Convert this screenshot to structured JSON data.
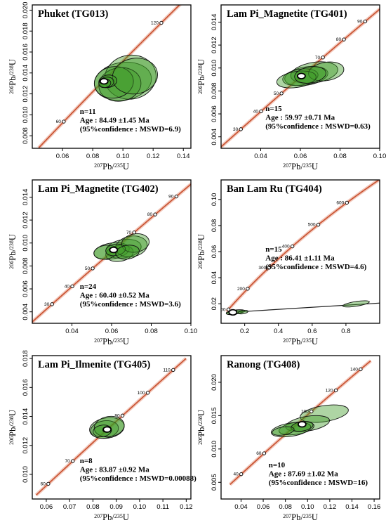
{
  "chart_data": [
    {
      "type": "scatter",
      "title": "Phuket (TG013)",
      "xlabel": "207Pb/235U",
      "ylabel": "206Pb/238U",
      "xlim": [
        0.04,
        0.145
      ],
      "ylim": [
        0.0068,
        0.0205
      ],
      "xticks": [
        0.06,
        0.08,
        0.1,
        0.12,
        0.14
      ],
      "xtick_labels": [
        "0.06",
        "0.08",
        "0.10",
        "0.12",
        "0.14"
      ],
      "yticks": [
        0.008,
        0.01,
        0.012,
        0.014,
        0.016,
        0.018,
        0.02
      ],
      "ytick_labels": [
        "0.008",
        "0.010",
        "0.012",
        "0.014",
        "0.016",
        "0.018",
        "0.020"
      ],
      "concordia_ages": [
        60,
        120
      ],
      "concordia_range": [
        44,
        132
      ],
      "n": "n=11",
      "age": "Age : 84.49 ±1.45 Ma",
      "mswd": "(95%confidence : MSWD=6.9)",
      "ellipses": [
        {
          "x": 0.1,
          "y": 0.0132,
          "rx": 0.019,
          "ry": 0.0018
        },
        {
          "x": 0.105,
          "y": 0.0136,
          "rx": 0.017,
          "ry": 0.0021
        },
        {
          "x": 0.098,
          "y": 0.0129,
          "rx": 0.014,
          "ry": 0.0016
        },
        {
          "x": 0.094,
          "y": 0.0131,
          "rx": 0.013,
          "ry": 0.0015
        },
        {
          "x": 0.108,
          "y": 0.0137,
          "rx": 0.015,
          "ry": 0.0017
        },
        {
          "x": 0.09,
          "y": 0.0132,
          "rx": 0.006,
          "ry": 0.0006
        },
        {
          "x": 0.089,
          "y": 0.0131,
          "rx": 0.005,
          "ry": 0.0005
        },
        {
          "x": 0.088,
          "y": 0.013,
          "rx": 0.004,
          "ry": 0.0004
        }
      ],
      "mean": {
        "x": 0.0875,
        "y": 0.0132
      }
    },
    {
      "type": "scatter",
      "title": "Lam Pi_Magnetite (TG401)",
      "xlabel": "207Pb/235U",
      "ylabel": "206Pb/238U",
      "xlim": [
        0.02,
        0.1
      ],
      "ylim": [
        0.003,
        0.0155
      ],
      "xticks": [
        0.04,
        0.06,
        0.08,
        0.1
      ],
      "xtick_labels": [
        "0.04",
        "0.06",
        "0.08",
        "0.10"
      ],
      "yticks": [
        0.004,
        0.006,
        0.008,
        0.01,
        0.012,
        0.014
      ],
      "ytick_labels": [
        "0.004",
        "0.006",
        "0.008",
        "0.010",
        "0.012",
        "0.014"
      ],
      "concordia_ages": [
        30,
        40,
        50,
        70,
        80,
        90
      ],
      "concordia_range": [
        20,
        100
      ],
      "n": "n=15",
      "age": "Age : 59.97 ±0.71 Ma",
      "mswd": "(95%confidence : MSWD=0.63)",
      "ellipses": [
        {
          "x": 0.063,
          "y": 0.0093,
          "rx": 0.011,
          "ry": 0.0008
        },
        {
          "x": 0.067,
          "y": 0.0096,
          "rx": 0.012,
          "ry": 0.0009
        },
        {
          "x": 0.06,
          "y": 0.0092,
          "rx": 0.009,
          "ry": 0.0007
        },
        {
          "x": 0.073,
          "y": 0.0097,
          "rx": 0.009,
          "ry": 0.0008
        },
        {
          "x": 0.058,
          "y": 0.009,
          "rx": 0.01,
          "ry": 0.0007
        },
        {
          "x": 0.065,
          "y": 0.0094,
          "rx": 0.008,
          "ry": 0.0007
        }
      ],
      "mean": {
        "x": 0.0605,
        "y": 0.0093
      }
    },
    {
      "type": "scatter",
      "title": "Lam Pi_Magnetite (TG402)",
      "xlabel": "207Pb/235U",
      "ylabel": "206Pb/238U",
      "xlim": [
        0.02,
        0.1
      ],
      "ylim": [
        0.003,
        0.0155
      ],
      "xticks": [
        0.04,
        0.06,
        0.08,
        0.1
      ],
      "xtick_labels": [
        "0.04",
        "0.06",
        "0.08",
        "0.10"
      ],
      "yticks": [
        0.004,
        0.006,
        0.008,
        0.01,
        0.012,
        0.014
      ],
      "ytick_labels": [
        "0.004",
        "0.006",
        "0.008",
        "0.010",
        "0.012",
        "0.014"
      ],
      "concordia_ages": [
        30,
        40,
        50,
        70,
        80,
        90
      ],
      "concordia_range": [
        20,
        100
      ],
      "n": "n=24",
      "age": "Age : 60.40 ±0.52 Ma",
      "mswd": "(95%confidence : MSWD=3.6)",
      "ellipses": [
        {
          "x": 0.066,
          "y": 0.0095,
          "rx": 0.009,
          "ry": 0.0008
        },
        {
          "x": 0.06,
          "y": 0.0093,
          "rx": 0.009,
          "ry": 0.0007
        },
        {
          "x": 0.064,
          "y": 0.0091,
          "rx": 0.007,
          "ry": 0.0007
        },
        {
          "x": 0.07,
          "y": 0.0097,
          "rx": 0.008,
          "ry": 0.0009
        },
        {
          "x": 0.057,
          "y": 0.0092,
          "rx": 0.006,
          "ry": 0.0006
        },
        {
          "x": 0.072,
          "y": 0.01,
          "rx": 0.007,
          "ry": 0.0008
        },
        {
          "x": 0.062,
          "y": 0.0094,
          "rx": 0.005,
          "ry": 0.0005
        },
        {
          "x": 0.068,
          "y": 0.0092,
          "rx": 0.006,
          "ry": 0.0006
        }
      ],
      "mean": {
        "x": 0.061,
        "y": 0.0094
      }
    },
    {
      "type": "scatter",
      "title": "Ban Lam Ru (TG404)",
      "xlabel": "207Pb/235U",
      "ylabel": "206Pb/238U",
      "xlim": [
        0.06,
        1.0
      ],
      "ylim": [
        0.005,
        0.115
      ],
      "xticks": [
        0.2,
        0.4,
        0.6,
        0.8
      ],
      "xtick_labels": [
        "0.2",
        "0.4",
        "0.6",
        "0.8"
      ],
      "yticks": [
        0.02,
        0.04,
        0.06,
        0.08,
        0.1
      ],
      "ytick_labels": [
        "0.02",
        "0.04",
        "0.06",
        "0.08",
        "0.10"
      ],
      "concordia_ages": [
        100,
        200,
        300,
        400,
        500,
        600
      ],
      "concordia_range": [
        90,
        705
      ],
      "n": "n=15",
      "age": "Age : 86.41 ±1.11 Ma",
      "mswd": "(95%confidence : MSWD=4.6)",
      "discordia": [
        [
          0.09,
          0.0132
        ],
        [
          1.0,
          0.0205
        ]
      ],
      "ellipses": [
        {
          "x": 0.14,
          "y": 0.0135,
          "rx": 0.05,
          "ry": 0.0016
        },
        {
          "x": 0.16,
          "y": 0.0138,
          "rx": 0.04,
          "ry": 0.0014
        },
        {
          "x": 0.12,
          "y": 0.0132,
          "rx": 0.03,
          "ry": 0.0012
        },
        {
          "x": 0.19,
          "y": 0.0136,
          "rx": 0.03,
          "ry": 0.0013
        },
        {
          "x": 0.86,
          "y": 0.0199,
          "rx": 0.08,
          "ry": 0.0018
        }
      ],
      "mean": {
        "x": 0.13,
        "y": 0.0134
      }
    },
    {
      "type": "scatter",
      "title": "Lam Pi_Ilmenite (TG405)",
      "xlabel": "207Pb/235U",
      "ylabel": "206Pb/238U",
      "xlim": [
        0.054,
        0.122
      ],
      "ylim": [
        0.0083,
        0.0182
      ],
      "xticks": [
        0.06,
        0.07,
        0.08,
        0.09,
        0.1,
        0.11,
        0.12
      ],
      "xtick_labels": [
        "0.06",
        "0.07",
        "0.08",
        "0.09",
        "0.10",
        "0.11",
        "0.12"
      ],
      "yticks": [
        0.01,
        0.012,
        0.014,
        0.016,
        0.018
      ],
      "ytick_labels": [
        "0.010",
        "0.012",
        "0.014",
        "0.016",
        "0.018"
      ],
      "concordia_ages": [
        60,
        70,
        90,
        100,
        110
      ],
      "concordia_range": [
        55,
        115
      ],
      "n": "n=8",
      "age": "Age : 83.87 ±0.92 Ma",
      "mswd": "(95%confidence : MSWD=0.00088)",
      "ellipses": [
        {
          "x": 0.086,
          "y": 0.0132,
          "rx": 0.0075,
          "ry": 0.0007
        },
        {
          "x": 0.085,
          "y": 0.0131,
          "rx": 0.006,
          "ry": 0.0006
        },
        {
          "x": 0.087,
          "y": 0.0133,
          "rx": 0.0065,
          "ry": 0.0007
        },
        {
          "x": 0.084,
          "y": 0.013,
          "rx": 0.004,
          "ry": 0.0004
        },
        {
          "x": 0.086,
          "y": 0.0131,
          "rx": 0.0018,
          "ry": 0.0002
        }
      ],
      "mean": {
        "x": 0.0861,
        "y": 0.0131
      }
    },
    {
      "type": "scatter",
      "title": "Ranong (TG408)",
      "xlabel": "207Pb/235U",
      "ylabel": "206Pb/238U",
      "xlim": [
        0.022,
        0.165
      ],
      "ylim": [
        0.0025,
        0.024
      ],
      "xticks": [
        0.04,
        0.06,
        0.08,
        0.1,
        0.12,
        0.14,
        0.16
      ],
      "xtick_labels": [
        "0.04",
        "0.06",
        "0.08",
        "0.10",
        "0.12",
        "0.14",
        "0.16"
      ],
      "yticks": [
        0.005,
        0.01,
        0.015,
        0.02
      ],
      "ytick_labels": [
        "0.005",
        "0.010",
        "0.015",
        "0.020"
      ],
      "concordia_ages": [
        40,
        60,
        100,
        120,
        140
      ],
      "concordia_range": [
        30,
        148
      ],
      "n": "n=10",
      "age": "Age : 87.69 ±1.02 Ma",
      "mswd": "(95%confidence : MSWD=16)",
      "ellipses": [
        {
          "x": 0.115,
          "y": 0.0153,
          "rx": 0.022,
          "ry": 0.0012
        },
        {
          "x": 0.1,
          "y": 0.0138,
          "rx": 0.02,
          "ry": 0.0011
        },
        {
          "x": 0.09,
          "y": 0.0131,
          "rx": 0.016,
          "ry": 0.0009
        },
        {
          "x": 0.085,
          "y": 0.0129,
          "rx": 0.018,
          "ry": 0.001
        },
        {
          "x": 0.095,
          "y": 0.0134,
          "rx": 0.01,
          "ry": 0.0007
        },
        {
          "x": 0.078,
          "y": 0.0127,
          "rx": 0.01,
          "ry": 0.0006
        }
      ],
      "mean": {
        "x": 0.095,
        "y": 0.0137
      }
    }
  ]
}
